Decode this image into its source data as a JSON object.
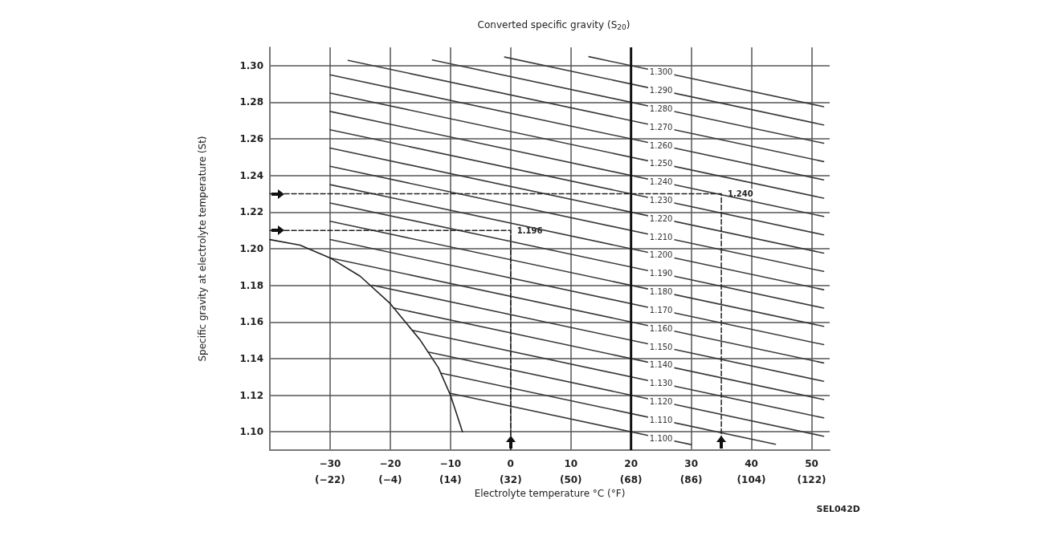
{
  "chart_data": {
    "type": "line",
    "title": "Converted specific gravity (S$_{20}$)",
    "xlabel": "Electrolyte temperature °C (°F)",
    "ylabel": "Specific gravity at electrolyte temperature (St)",
    "xlim": [
      -40,
      53
    ],
    "ylim": [
      1.09,
      1.31
    ],
    "xticks": [
      -30,
      -20,
      -10,
      0,
      10,
      20,
      30,
      40,
      50
    ],
    "x2lim": [
      -40,
      127.4
    ],
    "x2ticks": [
      {
        "value": -22,
        "label": "(−22)"
      },
      {
        "value": -4,
        "label": "(−4)"
      },
      {
        "value": 14,
        "label": "(14)"
      },
      {
        "value": 32,
        "label": "(32)"
      },
      {
        "value": 50,
        "label": "(50)"
      },
      {
        "value": 68,
        "label": "(68)"
      },
      {
        "value": 86,
        "label": "(86)"
      },
      {
        "value": 104,
        "label": "(104)"
      },
      {
        "value": 122,
        "label": "(122)"
      }
    ],
    "yticks": [
      {
        "value": 1.1,
        "label": "1.10"
      },
      1.12,
      1.14,
      1.16,
      1.18,
      {
        "value": 1.2,
        "label": "1.20"
      },
      1.22,
      1.24,
      1.26,
      1.28,
      {
        "value": 1.3,
        "label": "1.30"
      }
    ],
    "grid": true,
    "marker": "none",
    "ref_lines": [
      {
        "axis": "x",
        "value": 20,
        "color": "#111111"
      }
    ],
    "annotations": [
      {
        "text": "1.196",
        "x": 0,
        "y": 1.21
      },
      {
        "text": "1.240",
        "x": 35,
        "y": 1.23
      },
      "SEL042D"
    ],
    "series": [
      {
        "name": "1.300",
        "color": "#3a3a3a",
        "x": [
          13,
          25,
          52
        ],
        "values": [
          1.3049,
          1.2965,
          1.2776
        ]
      },
      {
        "name": "1.290",
        "color": "#3a3a3a",
        "x": [
          -1,
          25,
          52
        ],
        "values": [
          1.3047,
          1.2865,
          1.2676
        ]
      },
      {
        "name": "1.280",
        "color": "#3a3a3a",
        "x": [
          -13,
          25,
          52
        ],
        "values": [
          1.3031,
          1.2765,
          1.2576
        ]
      },
      {
        "name": "1.270",
        "color": "#3a3a3a",
        "x": [
          -27,
          25,
          52
        ],
        "values": [
          1.3029,
          1.2665,
          1.2476
        ]
      },
      {
        "name": "1.260",
        "color": "#3a3a3a",
        "x": [
          -30,
          25,
          52
        ],
        "values": [
          1.295,
          1.2565,
          1.2376
        ]
      },
      {
        "name": "1.250",
        "color": "#3a3a3a",
        "x": [
          -30,
          25,
          52
        ],
        "values": [
          1.285,
          1.2465,
          1.2276
        ]
      },
      {
        "name": "1.240",
        "color": "#3a3a3a",
        "x": [
          -30,
          25,
          52
        ],
        "values": [
          1.275,
          1.2365,
          1.2176
        ]
      },
      {
        "name": "1.230",
        "color": "#3a3a3a",
        "x": [
          -30,
          25,
          52
        ],
        "values": [
          1.265,
          1.2265,
          1.2076
        ]
      },
      {
        "name": "1.220",
        "color": "#3a3a3a",
        "x": [
          -30,
          25,
          52
        ],
        "values": [
          1.255,
          1.2165,
          1.1976
        ]
      },
      {
        "name": "1.210",
        "color": "#3a3a3a",
        "x": [
          -30,
          25,
          52
        ],
        "values": [
          1.245,
          1.2065,
          1.1876
        ]
      },
      {
        "name": "1.200",
        "color": "#3a3a3a",
        "x": [
          -30,
          25,
          52
        ],
        "values": [
          1.235,
          1.1965,
          1.1776
        ]
      },
      {
        "name": "1.190",
        "color": "#3a3a3a",
        "x": [
          -30,
          25,
          52
        ],
        "values": [
          1.225,
          1.1865,
          1.1676
        ]
      },
      {
        "name": "1.180",
        "color": "#3a3a3a",
        "x": [
          -30,
          25,
          52
        ],
        "values": [
          1.215,
          1.1765,
          1.1576
        ]
      },
      {
        "name": "1.170",
        "color": "#3a3a3a",
        "x": [
          -30,
          25,
          52
        ],
        "values": [
          1.205,
          1.1665,
          1.1476
        ]
      },
      {
        "name": "1.160",
        "color": "#3a3a3a",
        "x": [
          -30,
          25,
          52
        ],
        "values": [
          1.195,
          1.1565,
          1.1376
        ]
      },
      {
        "name": "1.150",
        "color": "#3a3a3a",
        "x": [
          -23,
          25,
          52
        ],
        "values": [
          1.1801,
          1.1465,
          1.1276
        ]
      },
      {
        "name": "1.140",
        "color": "#3a3a3a",
        "x": [
          -19.5,
          25,
          52
        ],
        "values": [
          1.1677,
          1.1365,
          1.1176
        ]
      },
      {
        "name": "1.130",
        "color": "#3a3a3a",
        "x": [
          -16.3,
          25,
          52
        ],
        "values": [
          1.1554,
          1.1265,
          1.1076
        ]
      },
      {
        "name": "1.120",
        "color": "#3a3a3a",
        "x": [
          -13.7,
          25,
          52
        ],
        "values": [
          1.1436,
          1.1165,
          1.0976
        ]
      },
      {
        "name": "1.110",
        "color": "#3a3a3a",
        "x": [
          -11.6,
          25,
          44
        ],
        "values": [
          1.1321,
          1.1065,
          1.0932
        ]
      },
      {
        "name": "1.100",
        "color": "#3a3a3a",
        "x": [
          -10,
          25,
          30
        ],
        "values": [
          1.121,
          1.0965,
          1.093
        ]
      },
      {
        "color": "#222222",
        "x": [
          -40,
          -35,
          -30,
          -25,
          -20,
          -15,
          -12,
          -10,
          -9,
          -8
        ],
        "values": [
          1.205,
          1.202,
          1.195,
          1.185,
          1.17,
          1.15,
          1.135,
          1.12,
          1.11,
          1.1
        ]
      },
      {
        "color": "#222222",
        "line_style": "dashed",
        "x": [
          -40,
          0,
          0
        ],
        "values": [
          1.21,
          1.21,
          1.09
        ]
      },
      {
        "color": "#222222",
        "line_style": "dashed",
        "x": [
          -40,
          35,
          35
        ],
        "values": [
          1.23,
          1.23,
          1.09
        ]
      }
    ]
  }
}
